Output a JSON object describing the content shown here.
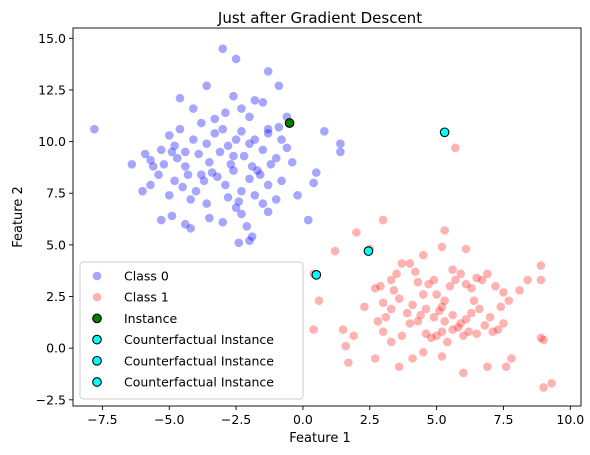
{
  "chart_data": {
    "type": "scatter",
    "title": "Just after Gradient Descent",
    "xlabel": "Feature 1",
    "ylabel": "Feature 2",
    "xlim": [
      -8.6,
      10.4
    ],
    "ylim": [
      -2.8,
      15.5
    ],
    "xticks": [
      -7.5,
      -5.0,
      -2.5,
      0.0,
      2.5,
      5.0,
      7.5,
      10.0
    ],
    "xtick_labels": [
      "−7.5",
      "−5.0",
      "−2.5",
      "0.0",
      "2.5",
      "5.0",
      "7.5",
      "10.0"
    ],
    "yticks": [
      -2.5,
      0.0,
      2.5,
      5.0,
      7.5,
      10.0,
      12.5,
      15.0
    ],
    "ytick_labels": [
      "−2.5",
      "0.0",
      "2.5",
      "5.0",
      "7.5",
      "10.0",
      "12.5",
      "15.0"
    ],
    "grid": false,
    "legend_position": "lower-left",
    "series": [
      {
        "name": "Class 0",
        "color": "#0000ff",
        "alpha": 0.35,
        "edge": "none",
        "points": [
          [
            -7.8,
            10.6
          ],
          [
            -6.4,
            8.9
          ],
          [
            -5.9,
            9.4
          ],
          [
            -5.7,
            9.1
          ],
          [
            -5.3,
            9.6
          ],
          [
            -5.0,
            10.3
          ],
          [
            -4.8,
            9.8
          ],
          [
            -4.6,
            10.6
          ],
          [
            -4.4,
            9.5
          ],
          [
            -4.1,
            10.1
          ],
          [
            -3.8,
            10.9
          ],
          [
            -3.6,
            9.9
          ],
          [
            -3.3,
            10.4
          ],
          [
            -3.0,
            10.6
          ],
          [
            -2.8,
            9.8
          ],
          [
            -2.6,
            9.3
          ],
          [
            -2.3,
            10.5
          ],
          [
            -2.0,
            9.9
          ],
          [
            -1.8,
            10.1
          ],
          [
            -1.5,
            9.6
          ],
          [
            -1.3,
            10.4
          ],
          [
            -1.0,
            9.2
          ],
          [
            -0.8,
            10.1
          ],
          [
            -0.6,
            9.7
          ],
          [
            -4.6,
            12.1
          ],
          [
            -3.6,
            12.7
          ],
          [
            -3.0,
            14.5
          ],
          [
            -2.5,
            14.0
          ],
          [
            -2.6,
            12.2
          ],
          [
            -2.3,
            11.6
          ],
          [
            -2.0,
            11.2
          ],
          [
            -1.8,
            12.0
          ],
          [
            -1.3,
            13.4
          ],
          [
            -0.9,
            12.7
          ],
          [
            -0.6,
            11.2
          ],
          [
            -1.5,
            11.9
          ],
          [
            -2.9,
            11.4
          ],
          [
            -3.3,
            11.1
          ],
          [
            -4.1,
            11.6
          ],
          [
            0.8,
            10.5
          ],
          [
            1.4,
            9.9
          ],
          [
            1.4,
            9.5
          ],
          [
            0.5,
            8.5
          ],
          [
            0.4,
            8.0
          ],
          [
            -0.2,
            7.4
          ],
          [
            -0.8,
            8.1
          ],
          [
            -1.3,
            7.9
          ],
          [
            -1.5,
            7.0
          ],
          [
            -1.8,
            7.4
          ],
          [
            -2.0,
            8.2
          ],
          [
            -2.3,
            7.6
          ],
          [
            -2.6,
            8.6
          ],
          [
            -2.9,
            7.9
          ],
          [
            -3.2,
            8.3
          ],
          [
            -3.4,
            8.5
          ],
          [
            -3.7,
            8.1
          ],
          [
            -4.0,
            7.6
          ],
          [
            -4.3,
            8.4
          ],
          [
            -4.5,
            7.8
          ],
          [
            -4.8,
            8.1
          ],
          [
            -5.0,
            7.4
          ],
          [
            -5.4,
            8.4
          ],
          [
            -5.7,
            7.9
          ],
          [
            -6.0,
            7.6
          ],
          [
            -5.2,
            8.9
          ],
          [
            -4.7,
            9.2
          ],
          [
            -4.4,
            8.8
          ],
          [
            -3.9,
            9.4
          ],
          [
            -3.5,
            9.0
          ],
          [
            -3.1,
            9.5
          ],
          [
            -2.7,
            8.9
          ],
          [
            -2.2,
            9.3
          ],
          [
            -1.9,
            8.8
          ],
          [
            -1.6,
            8.4
          ],
          [
            -1.2,
            8.9
          ],
          [
            -0.4,
            9.0
          ],
          [
            -5.3,
            6.2
          ],
          [
            -4.9,
            6.4
          ],
          [
            -4.4,
            6.0
          ],
          [
            -4.2,
            5.8
          ],
          [
            -3.5,
            6.3
          ],
          [
            -3.0,
            6.1
          ],
          [
            -2.5,
            6.8
          ],
          [
            -2.3,
            6.5
          ],
          [
            -2.1,
            5.9
          ],
          [
            -1.9,
            5.4
          ],
          [
            -2.4,
            5.1
          ],
          [
            -2.0,
            5.2
          ],
          [
            -1.3,
            6.6
          ],
          [
            -1.0,
            7.2
          ],
          [
            0.2,
            6.2
          ],
          [
            -4.2,
            7.2
          ],
          [
            -3.6,
            7.0
          ],
          [
            -2.8,
            7.3
          ],
          [
            -5.6,
            8.8
          ],
          [
            -2.4,
            7.1
          ],
          [
            -1.7,
            8.6
          ],
          [
            -4.9,
            9.5
          ],
          [
            -3.8,
            8.4
          ],
          [
            -2.5,
            10.1
          ],
          [
            -1.3,
            10.6
          ],
          [
            -0.9,
            10.7
          ]
        ]
      },
      {
        "name": "Class 1",
        "color": "#ff0000",
        "alpha": 0.3,
        "edge": "none",
        "points": [
          [
            5.7,
            9.7
          ],
          [
            3.0,
            6.2
          ],
          [
            5.3,
            5.7
          ],
          [
            1.2,
            4.7
          ],
          [
            2.0,
            5.6
          ],
          [
            2.5,
            4.8
          ],
          [
            5.2,
            4.9
          ],
          [
            6.1,
            4.8
          ],
          [
            4.5,
            4.5
          ],
          [
            0.4,
            3.6
          ],
          [
            0.6,
            2.3
          ],
          [
            0.4,
            0.9
          ],
          [
            1.5,
            0.9
          ],
          [
            1.9,
            0.6
          ],
          [
            1.6,
            0.1
          ],
          [
            1.7,
            -0.7
          ],
          [
            2.3,
            2.0
          ],
          [
            2.7,
            2.9
          ],
          [
            2.9,
            3.0
          ],
          [
            3.0,
            2.2
          ],
          [
            3.3,
            3.3
          ],
          [
            3.5,
            3.6
          ],
          [
            3.7,
            4.1
          ],
          [
            4.0,
            4.1
          ],
          [
            4.2,
            3.7
          ],
          [
            4.3,
            3.2
          ],
          [
            4.5,
            2.6
          ],
          [
            4.7,
            3.1
          ],
          [
            4.9,
            3.3
          ],
          [
            5.0,
            2.6
          ],
          [
            5.3,
            2.3
          ],
          [
            5.5,
            3.0
          ],
          [
            5.7,
            3.3
          ],
          [
            5.9,
            3.6
          ],
          [
            6.1,
            3.1
          ],
          [
            6.3,
            2.9
          ],
          [
            6.5,
            3.4
          ],
          [
            6.7,
            3.3
          ],
          [
            6.9,
            3.6
          ],
          [
            7.2,
            3.0
          ],
          [
            7.5,
            2.7
          ],
          [
            7.7,
            2.3
          ],
          [
            8.1,
            2.8
          ],
          [
            8.4,
            3.3
          ],
          [
            8.9,
            4.0
          ],
          [
            8.9,
            3.3
          ],
          [
            8.9,
            0.5
          ],
          [
            9.0,
            0.4
          ],
          [
            9.3,
            -1.7
          ],
          [
            9.0,
            -1.9
          ],
          [
            7.8,
            -0.5
          ],
          [
            7.6,
            -0.9
          ],
          [
            6.9,
            -0.9
          ],
          [
            6.0,
            -1.2
          ],
          [
            5.2,
            -0.4
          ],
          [
            4.5,
            -0.2
          ],
          [
            4.1,
            -0.5
          ],
          [
            3.6,
            -0.9
          ],
          [
            2.7,
            -0.5
          ],
          [
            3.0,
            0.8
          ],
          [
            3.3,
            0.3
          ],
          [
            3.7,
            0.6
          ],
          [
            4.0,
            1.2
          ],
          [
            4.3,
            1.3
          ],
          [
            4.6,
            0.7
          ],
          [
            4.8,
            0.5
          ],
          [
            5.0,
            0.6
          ],
          [
            5.2,
            0.8
          ],
          [
            5.4,
            0.3
          ],
          [
            5.6,
            0.9
          ],
          [
            5.8,
            1.0
          ],
          [
            6.0,
            0.6
          ],
          [
            6.2,
            0.8
          ],
          [
            6.5,
            0.7
          ],
          [
            6.8,
            1.1
          ],
          [
            7.1,
            0.8
          ],
          [
            7.3,
            0.9
          ],
          [
            7.5,
            1.2
          ],
          [
            7.0,
            1.5
          ],
          [
            6.6,
            1.9
          ],
          [
            6.3,
            1.7
          ],
          [
            6.1,
            1.4
          ],
          [
            5.9,
            1.2
          ],
          [
            5.6,
            1.6
          ],
          [
            5.3,
            1.3
          ],
          [
            5.1,
            1.8
          ],
          [
            4.9,
            1.5
          ],
          [
            4.6,
            1.9
          ],
          [
            4.4,
            1.6
          ],
          [
            4.1,
            2.1
          ],
          [
            3.9,
            1.7
          ],
          [
            3.6,
            2.4
          ],
          [
            3.3,
            1.9
          ],
          [
            3.1,
            1.5
          ],
          [
            2.8,
            1.3
          ],
          [
            3.4,
            2.8
          ],
          [
            5.6,
            3.8
          ],
          [
            6.4,
            2.3
          ],
          [
            7.4,
            2.0
          ],
          [
            5.2,
            2.0
          ]
        ]
      },
      {
        "name": "Instance",
        "color": "#008000",
        "alpha": 1,
        "edge": "#000000",
        "points": [
          [
            -0.5,
            10.9
          ]
        ]
      },
      {
        "name": "Counterfactual Instance",
        "color": "#00ffff",
        "alpha": 1,
        "edge": "#000000",
        "points": [
          [
            5.3,
            10.45
          ]
        ]
      },
      {
        "name": "Counterfactual Instance",
        "color": "#00ffff",
        "alpha": 1,
        "edge": "#000000",
        "points": [
          [
            2.45,
            4.7
          ]
        ]
      },
      {
        "name": "Counterfactual Instance",
        "color": "#00ffff",
        "alpha": 1,
        "edge": "#000000",
        "points": [
          [
            0.5,
            3.55
          ]
        ]
      }
    ]
  }
}
